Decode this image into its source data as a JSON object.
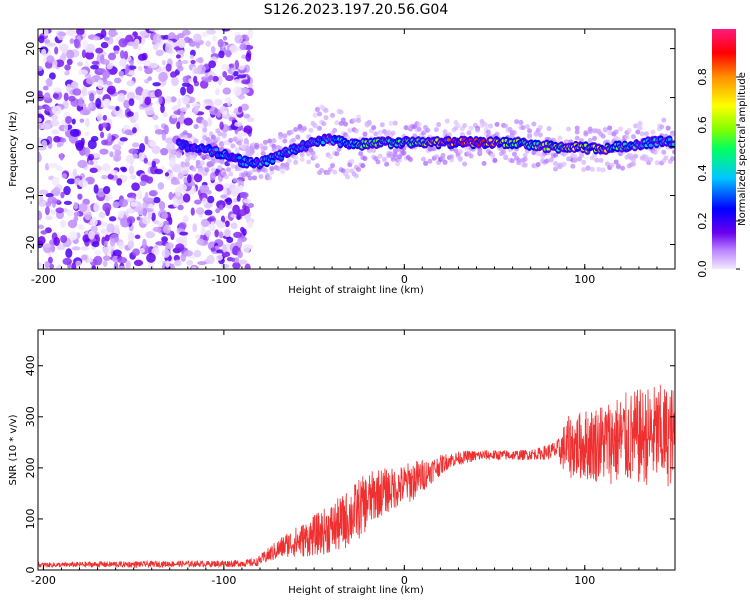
{
  "title": "S126.2023.197.20.56.G04",
  "chart_data": [
    {
      "type": "heatmap",
      "xlabel": "Height of straight line (km)",
      "ylabel": "Frequency (Hz)",
      "xlim": [
        -203,
        150
      ],
      "ylim": [
        -25,
        24
      ],
      "x_ticks": [
        "-200",
        "-100",
        "0",
        "100"
      ],
      "x_tick_values": [
        -200,
        -100,
        0,
        100
      ],
      "y_ticks": [
        "20",
        "10",
        "0",
        "-10",
        "-20"
      ],
      "y_tick_values": [
        20,
        10,
        0,
        -10,
        -20
      ],
      "colorbar": {
        "label": "Normalized spectral amplitude",
        "range": [
          0,
          1
        ],
        "ticks": [
          "0.0",
          "0.2",
          "0.4",
          "0.6",
          "0.8"
        ],
        "tick_values": [
          0.0,
          0.2,
          0.4,
          0.6,
          0.8
        ],
        "colors": [
          "#f3eaff",
          "#b880ff",
          "#6a00ee",
          "#0000ff",
          "#00c8ff",
          "#00ff60",
          "#80ff00",
          "#ffff00",
          "#ff9000",
          "#ff0000",
          "#ff1a80"
        ]
      },
      "ridge": {
        "x": [
          -125,
          -100,
          -90,
          -80,
          -70,
          -60,
          -50,
          -40,
          -30,
          -20,
          -10,
          0,
          10,
          20,
          30,
          40,
          50,
          60,
          70,
          80,
          90,
          100,
          110,
          120,
          130,
          140,
          150
        ],
        "freq": [
          0.5,
          -1.5,
          -3,
          -3.5,
          -2,
          -0.5,
          1,
          1.5,
          0.5,
          0.5,
          0.8,
          0.8,
          0.8,
          0.8,
          0.8,
          0.8,
          0.8,
          0.8,
          0.3,
          0,
          -0.2,
          -0.3,
          -0.5,
          0,
          0.5,
          1,
          0.8
        ],
        "amplitude": [
          0.35,
          0.4,
          0.4,
          0.4,
          0.4,
          0.4,
          0.4,
          0.45,
          0.45,
          0.6,
          0.55,
          0.55,
          0.6,
          0.85,
          0.95,
          0.95,
          0.9,
          0.6,
          0.55,
          0.6,
          0.65,
          0.7,
          0.7,
          0.55,
          0.45,
          0.45,
          0.45
        ]
      },
      "notes_visible": "Noise region spans x from -203 to about -85 km across all frequencies."
    },
    {
      "type": "line",
      "xlabel": "Height of straight line (km)",
      "ylabel": "SNR (10 * v/v)",
      "xlim": [
        -203,
        150
      ],
      "ylim": [
        0,
        470
      ],
      "x_ticks": [
        "-200",
        "-100",
        "0",
        "100"
      ],
      "x_tick_values": [
        -200,
        -100,
        0,
        100
      ],
      "y_ticks": [
        "0",
        "100",
        "200",
        "300",
        "400"
      ],
      "y_tick_values": [
        0,
        100,
        200,
        300,
        400
      ],
      "series_color": "#f03030",
      "x": [
        -203,
        -190,
        -170,
        -150,
        -130,
        -110,
        -90,
        -82,
        -75,
        -65,
        -55,
        -45,
        -35,
        -25,
        -15,
        -5,
        5,
        15,
        25,
        35,
        45,
        55,
        65,
        75,
        85,
        90,
        100,
        110,
        120,
        130,
        140,
        150
      ],
      "mean": [
        10,
        10,
        11,
        11,
        12,
        12,
        13,
        15,
        30,
        50,
        60,
        75,
        90,
        120,
        150,
        160,
        175,
        195,
        215,
        222,
        225,
        225,
        225,
        228,
        235,
        240,
        245,
        250,
        255,
        260,
        265,
        260
      ],
      "spread": [
        5,
        5,
        6,
        6,
        6,
        6,
        7,
        8,
        15,
        25,
        35,
        45,
        55,
        60,
        50,
        40,
        40,
        25,
        15,
        12,
        10,
        10,
        10,
        12,
        20,
        60,
        70,
        80,
        90,
        95,
        100,
        100
      ]
    }
  ]
}
